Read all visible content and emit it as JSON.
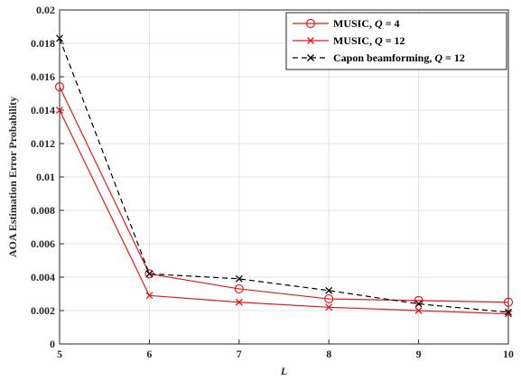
{
  "chart_data": {
    "type": "line",
    "xlabel": "L",
    "ylabel": "AOA Estimation Error Probability",
    "xlim": [
      5,
      10
    ],
    "ylim": [
      0,
      0.02
    ],
    "xticks": [
      "5",
      "6",
      "7",
      "8",
      "9",
      "10"
    ],
    "yticks": [
      "0",
      "0.002",
      "0.004",
      "0.006",
      "0.008",
      "0.01",
      "0.012",
      "0.014",
      "0.016",
      "0.018",
      "0.02"
    ],
    "x": [
      5,
      6,
      7,
      8,
      9,
      10
    ],
    "grid": true,
    "legend_position": "top-right",
    "series": [
      {
        "name": "MUSIC, Q = 4",
        "legend_parts": [
          "MUSIC, ",
          "Q",
          " = 4"
        ],
        "values": [
          0.0154,
          0.0042,
          0.0033,
          0.0027,
          0.0026,
          0.0025
        ],
        "color": "#e41a1c",
        "marker": "circle",
        "dash": "solid"
      },
      {
        "name": "MUSIC, Q = 12",
        "legend_parts": [
          "MUSIC, ",
          "Q",
          " = 12"
        ],
        "values": [
          0.014,
          0.0029,
          0.0025,
          0.0022,
          0.002,
          0.0018
        ],
        "color": "#e41a1c",
        "marker": "x",
        "dash": "solid"
      },
      {
        "name": "Capon beamforming, Q = 12",
        "legend_parts": [
          "Capon beamforming, ",
          "Q",
          " = 12"
        ],
        "values": [
          0.0183,
          0.0042,
          0.0039,
          0.0032,
          0.0024,
          0.0019
        ],
        "color": "#000000",
        "marker": "x",
        "dash": "dashed"
      }
    ]
  }
}
